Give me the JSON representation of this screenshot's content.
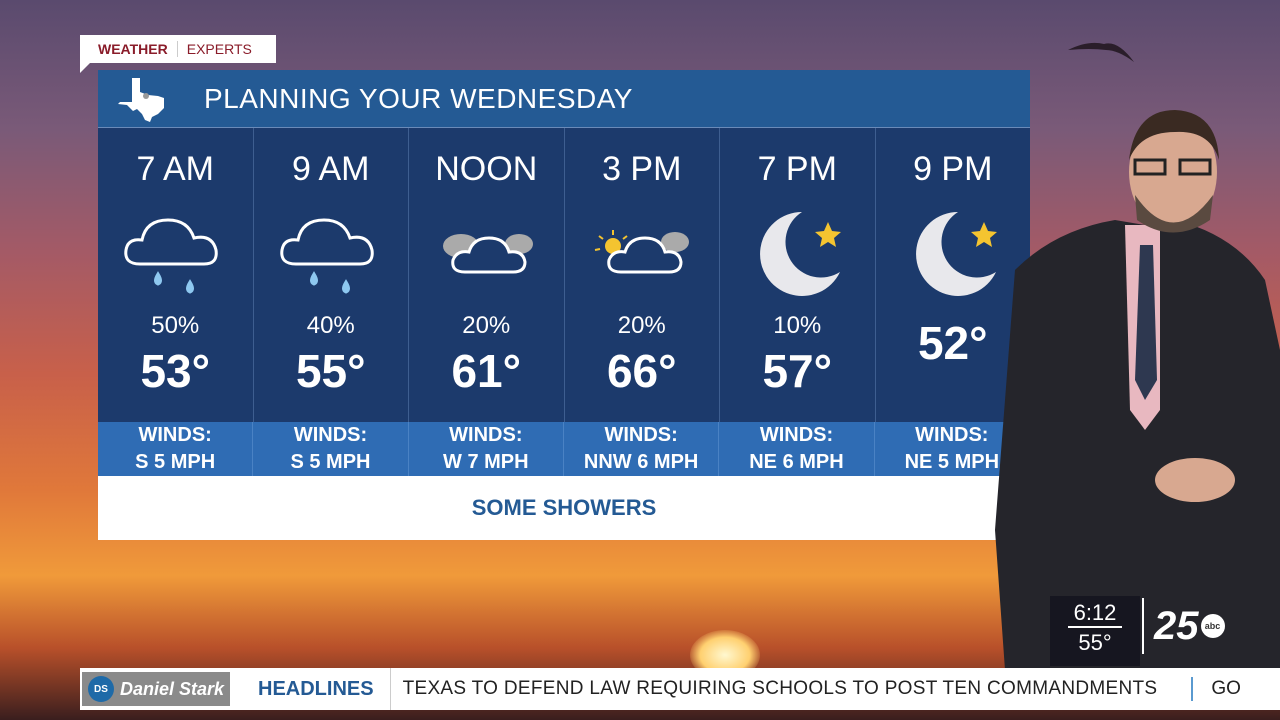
{
  "tag": {
    "weather": "WEATHER",
    "experts": "EXPERTS"
  },
  "header": {
    "title": "PLANNING YOUR WEDNESDAY",
    "icon": "texas-map-icon"
  },
  "forecast": [
    {
      "time": "7 AM",
      "icon": "rain-cloud",
      "precip": "50%",
      "temp": "53°",
      "winds_label": "WINDS:",
      "winds": "S 5 MPH"
    },
    {
      "time": "9 AM",
      "icon": "rain-cloud",
      "precip": "40%",
      "temp": "55°",
      "winds_label": "WINDS:",
      "winds": "S 5 MPH"
    },
    {
      "time": "NOON",
      "icon": "cloudy",
      "precip": "20%",
      "temp": "61°",
      "winds_label": "WINDS:",
      "winds": "W 7 MPH"
    },
    {
      "time": "3 PM",
      "icon": "partly-sunny",
      "precip": "20%",
      "temp": "66°",
      "winds_label": "WINDS:",
      "winds": "NNW 6 MPH"
    },
    {
      "time": "7 PM",
      "icon": "moon-star",
      "precip": "10%",
      "temp": "57°",
      "winds_label": "WINDS:",
      "winds": "NE 6 MPH"
    },
    {
      "time": "9 PM",
      "icon": "moon-star",
      "precip": "",
      "temp": "52°",
      "winds_label": "WINDS:",
      "winds": "NE 5 MPH"
    }
  ],
  "summary": "SOME SHOWERS",
  "clock": {
    "time": "6:12",
    "temp": "55°"
  },
  "station": {
    "number": "25",
    "network": "abc"
  },
  "ticker": {
    "sponsor": "Daniel Stark",
    "sponsor_initials": "DS",
    "label": "HEADLINES",
    "headline": "TEXAS TO DEFEND LAW REQUIRING SCHOOLS TO POST TEN COMMANDMENTS",
    "next": "GO"
  },
  "colors": {
    "header": "#245a94",
    "columns": "#1c3a6c",
    "winds": "#2f6cb4",
    "brand": "#8a1c2a"
  }
}
